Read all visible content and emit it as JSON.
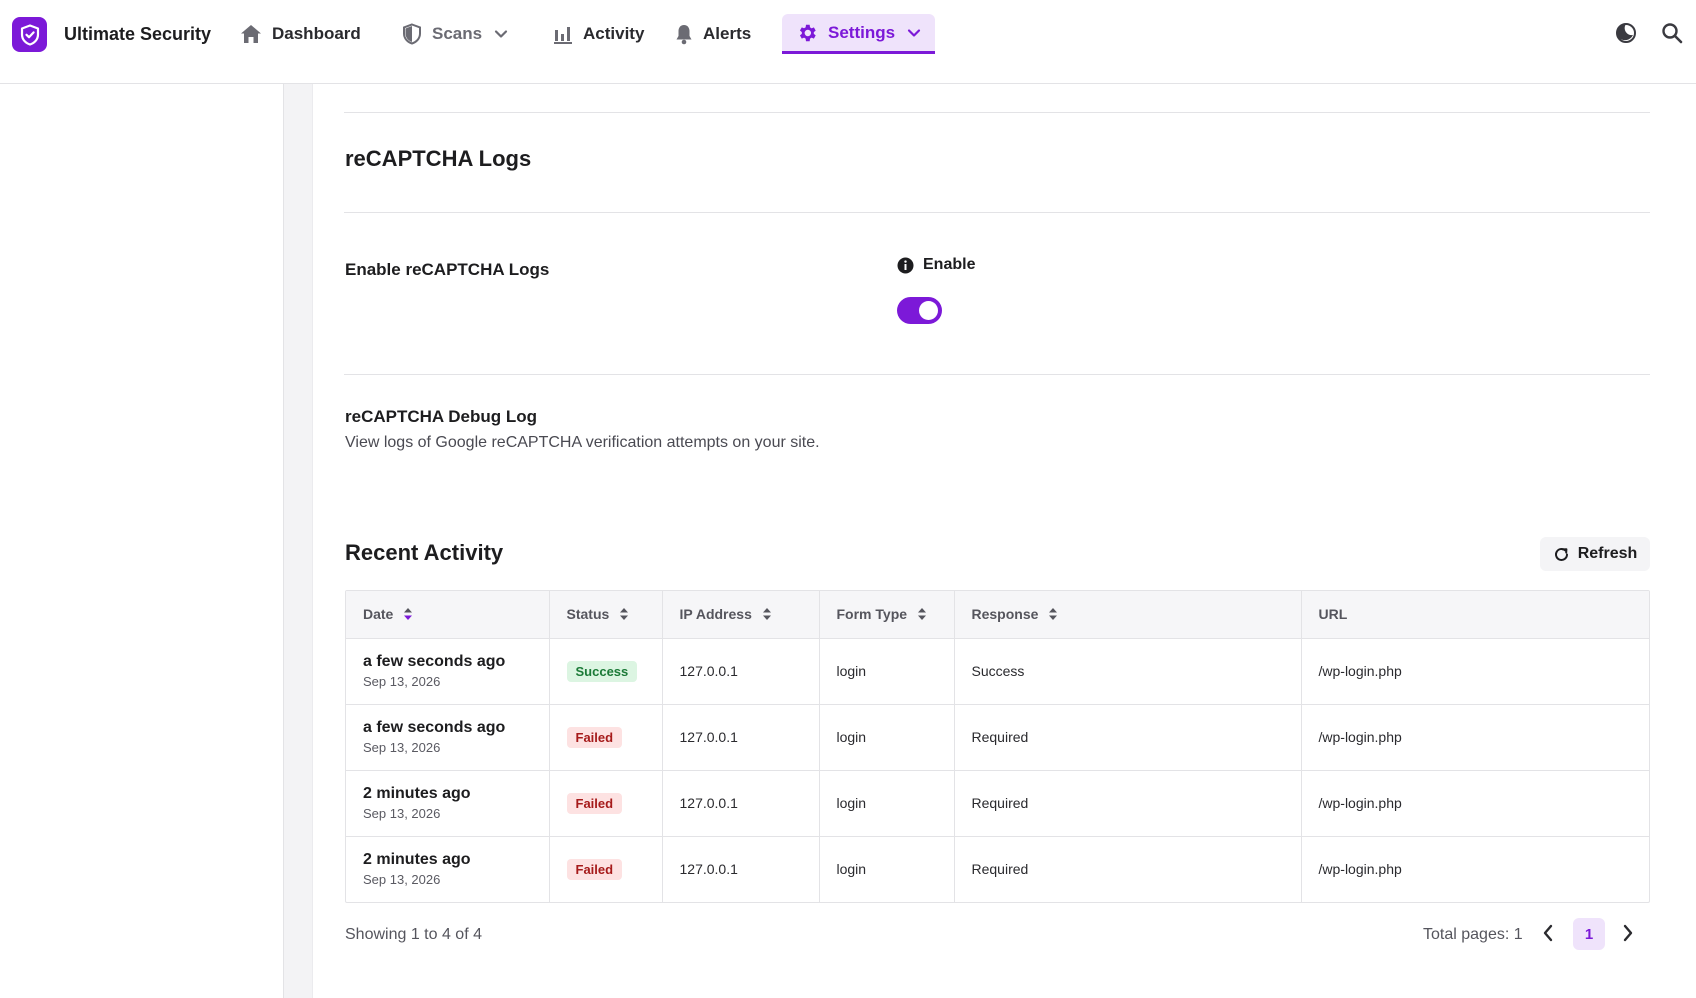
{
  "app": {
    "brand_name": "Ultimate Security",
    "accent_color": "#7c19d8"
  },
  "nav": {
    "items": [
      {
        "label": "Dashboard",
        "icon": "home-icon"
      },
      {
        "label": "Scans",
        "icon": "shield-icon",
        "has_dropdown": true
      },
      {
        "label": "Activity",
        "icon": "bar-chart-icon"
      },
      {
        "label": "Alerts",
        "icon": "bell-icon"
      },
      {
        "label": "Settings",
        "icon": "gear-icon",
        "has_dropdown": true,
        "active": true
      }
    ],
    "right_icons": [
      "theme-toggle-icon",
      "search-icon"
    ]
  },
  "recaptcha": {
    "section_title": "reCAPTCHA Logs",
    "enable_label": "Enable reCAPTCHA Logs",
    "toggle_label": "Enable",
    "toggle_on": true,
    "debug_title": "reCAPTCHA Debug Log",
    "debug_description": "View logs of Google reCAPTCHA verification attempts on your site."
  },
  "recent": {
    "title": "Recent Activity",
    "refresh_label": "Refresh",
    "columns": [
      "Date",
      "Status",
      "IP Address",
      "Form Type",
      "Response",
      "URL"
    ],
    "rows": [
      {
        "date_relative": "a few seconds ago",
        "date": "Sep 13, 2026",
        "status": "Success",
        "ip": "127.0.0.1",
        "form_type": "login",
        "response": "Success",
        "url": "/wp-login.php"
      },
      {
        "date_relative": "a few seconds ago",
        "date": "Sep 13, 2026",
        "status": "Failed",
        "ip": "127.0.0.1",
        "form_type": "login",
        "response": "Required",
        "url": "/wp-login.php"
      },
      {
        "date_relative": "2 minutes ago",
        "date": "Sep 13, 2026",
        "status": "Failed",
        "ip": "127.0.0.1",
        "form_type": "login",
        "response": "Required",
        "url": "/wp-login.php"
      },
      {
        "date_relative": "2 minutes ago",
        "date": "Sep 13, 2026",
        "status": "Failed",
        "ip": "127.0.0.1",
        "form_type": "login",
        "response": "Required",
        "url": "/wp-login.php"
      }
    ],
    "showing_text": "Showing 1 to 4 of 4",
    "total_pages_text": "Total pages: 1",
    "current_page": "1"
  }
}
